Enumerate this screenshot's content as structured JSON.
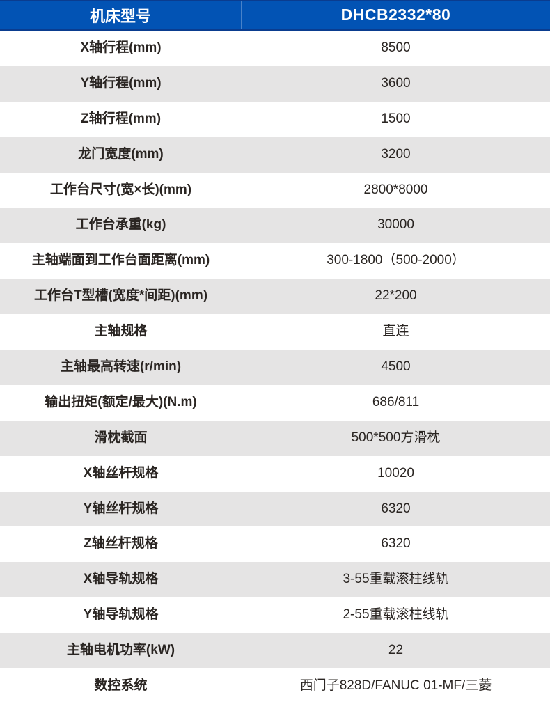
{
  "header": {
    "model_label": "机床型号",
    "model_value": "DHCB2332*80"
  },
  "colors": {
    "header_blue": "#0253b4",
    "header_dark": "#0a3c8f",
    "row_gray": "#e5e4e4",
    "text": "#2a2522"
  },
  "rows": [
    {
      "label": "X轴行程(mm)",
      "value": "8500"
    },
    {
      "label": "Y轴行程(mm)",
      "value": "3600"
    },
    {
      "label": "Z轴行程(mm)",
      "value": "1500"
    },
    {
      "label": "龙门宽度(mm)",
      "value": "3200"
    },
    {
      "label": "工作台尺寸(宽×长)(mm)",
      "value": "2800*8000"
    },
    {
      "label": "工作台承重(kg)",
      "value": "30000"
    },
    {
      "label": "主轴端面到工作台面距离(mm)",
      "value": "300-1800（500-2000）"
    },
    {
      "label": "工作台T型槽(宽度*间距)(mm)",
      "value": "22*200"
    },
    {
      "label": "主轴规格",
      "value": "直连"
    },
    {
      "label": "主轴最高转速(r/min)",
      "value": "4500"
    },
    {
      "label": "输出扭矩(额定/最大)(N.m)",
      "value": "686/811"
    },
    {
      "label": "滑枕截面",
      "value": "500*500方滑枕"
    },
    {
      "label": "X轴丝杆规格",
      "value": "10020"
    },
    {
      "label": "Y轴丝杆规格",
      "value": "6320"
    },
    {
      "label": "Z轴丝杆规格",
      "value": "6320"
    },
    {
      "label": "X轴导轨规格",
      "value": "3-55重载滚柱线轨"
    },
    {
      "label": "Y轴导轨规格",
      "value": "2-55重载滚柱线轨"
    },
    {
      "label": "主轴电机功率(kW)",
      "value": "22"
    },
    {
      "label": "数控系统",
      "value": "西门子828D/FANUC 01-MF/三菱"
    }
  ]
}
